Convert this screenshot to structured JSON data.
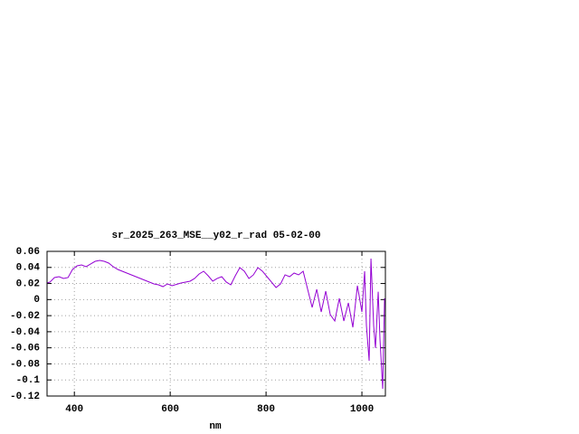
{
  "chart_data": {
    "type": "line",
    "title": "sr_2025_263_MSE__y02_r_rad 05-02-00",
    "x_label": "nm",
    "x": [
      343.4,
      349.1,
      358.5,
      367.9,
      377.4,
      386.8,
      396.2,
      405.7,
      415.1,
      424.5,
      434.0,
      443.4,
      452.8,
      462.3,
      471.7,
      481.1,
      490.6,
      509.4,
      528.3,
      547.2,
      566.0,
      575.5,
      584.9,
      594.3,
      603.8,
      622.6,
      641.5,
      650.9,
      660.4,
      669.8,
      679.2,
      688.7,
      698.1,
      707.5,
      717.0,
      726.4,
      735.8,
      745.3,
      754.7,
      764.2,
      773.6,
      783.0,
      792.5,
      801.9,
      811.3,
      820.8,
      830.2,
      839.6,
      849.1,
      858.5,
      867.9,
      877.4,
      886.8,
      896.2,
      905.7,
      915.1,
      924.5,
      934.0,
      943.4,
      952.8,
      962.3,
      971.7,
      981.1,
      990.6,
      1000.0,
      1005.7,
      1009.4,
      1015.1,
      1018.9,
      1024.5,
      1028.3,
      1034.0,
      1037.7,
      1043.4,
      1047.2
    ],
    "series": [
      {
        "name": "sr_2025_263_MSE__y02_r_rad",
        "color": "#9400d3",
        "values": [
          0.0206,
          0.0218,
          0.0274,
          0.0285,
          0.0263,
          0.0274,
          0.0375,
          0.042,
          0.0431,
          0.0409,
          0.0443,
          0.0476,
          0.0488,
          0.0476,
          0.0454,
          0.0409,
          0.0375,
          0.033,
          0.0285,
          0.024,
          0.0195,
          0.0184,
          0.0161,
          0.0195,
          0.0173,
          0.0206,
          0.0229,
          0.0263,
          0.0319,
          0.0353,
          0.0296,
          0.0229,
          0.0263,
          0.0285,
          0.0218,
          0.0184,
          0.0296,
          0.0398,
          0.0353,
          0.0263,
          0.0308,
          0.0398,
          0.0353,
          0.0285,
          0.0218,
          0.015,
          0.0195,
          0.0308,
          0.0285,
          0.033,
          0.0308,
          0.0353,
          0.0128,
          -0.0098,
          0.0128,
          -0.0154,
          0.0105,
          -0.0188,
          -0.0266,
          0.0015,
          -0.0266,
          -0.0041,
          -0.0345,
          0.0173,
          -0.0154,
          0.0353,
          -0.0323,
          -0.0761,
          0.051,
          -0.0323,
          -0.0604,
          0.0098,
          -0.0491,
          -0.111,
          0.0015
        ]
      }
    ],
    "xlim": [
      343,
      1049
    ],
    "xticks": [
      400,
      600,
      800,
      1000
    ],
    "ylim": [
      -0.12,
      0.06
    ],
    "yticks": [
      0.06,
      0.04,
      0.02,
      0,
      -0.02,
      -0.04,
      -0.06,
      -0.08,
      -0.1,
      -0.12
    ],
    "grid": true
  }
}
